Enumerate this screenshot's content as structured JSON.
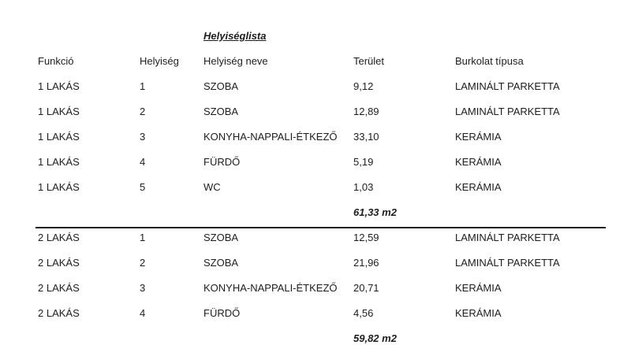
{
  "page": {
    "title": "Helyiséglista",
    "colors": {
      "text": "#1d1d1d",
      "background": "#ffffff",
      "rule": "#1d1d1d"
    }
  },
  "table": {
    "headers": [
      "Funkció",
      "Helyiség",
      "Helyiség neve",
      "Terület",
      "Burkolat típusa"
    ],
    "groups": [
      {
        "rows": [
          {
            "funkcio": "1 LAKÁS",
            "helyiseg": "1",
            "nev": "SZOBA",
            "terulet": "9,12",
            "burkolat": "LAMINÁLT PARKETTA"
          },
          {
            "funkcio": "1 LAKÁS",
            "helyiseg": "2",
            "nev": "SZOBA",
            "terulet": "12,89",
            "burkolat": "LAMINÁLT PARKETTA"
          },
          {
            "funkcio": "1 LAKÁS",
            "helyiseg": "3",
            "nev": "KONYHA-NAPPALI-ÉTKEZŐ",
            "terulet": "33,10",
            "burkolat": "KERÁMIA"
          },
          {
            "funkcio": "1 LAKÁS",
            "helyiseg": "4",
            "nev": "FÜRDŐ",
            "terulet": "5,19",
            "burkolat": "KERÁMIA"
          },
          {
            "funkcio": "1 LAKÁS",
            "helyiseg": "5",
            "nev": "WC",
            "terulet": "1,03",
            "burkolat": "KERÁMIA"
          }
        ],
        "subtotal": "61,33 m2"
      },
      {
        "rows": [
          {
            "funkcio": "2 LAKÁS",
            "helyiseg": "1",
            "nev": "SZOBA",
            "terulet": "12,59",
            "burkolat": "LAMINÁLT PARKETTA"
          },
          {
            "funkcio": "2 LAKÁS",
            "helyiseg": "2",
            "nev": "SZOBA",
            "terulet": "21,96",
            "burkolat": "LAMINÁLT PARKETTA"
          },
          {
            "funkcio": "2 LAKÁS",
            "helyiseg": "3",
            "nev": "KONYHA-NAPPALI-ÉTKEZŐ",
            "terulet": "20,71",
            "burkolat": "KERÁMIA"
          },
          {
            "funkcio": "2 LAKÁS",
            "helyiseg": "4",
            "nev": "FÜRDŐ",
            "terulet": "4,56",
            "burkolat": "KERÁMIA"
          }
        ],
        "subtotal": "59,82 m2"
      }
    ]
  }
}
